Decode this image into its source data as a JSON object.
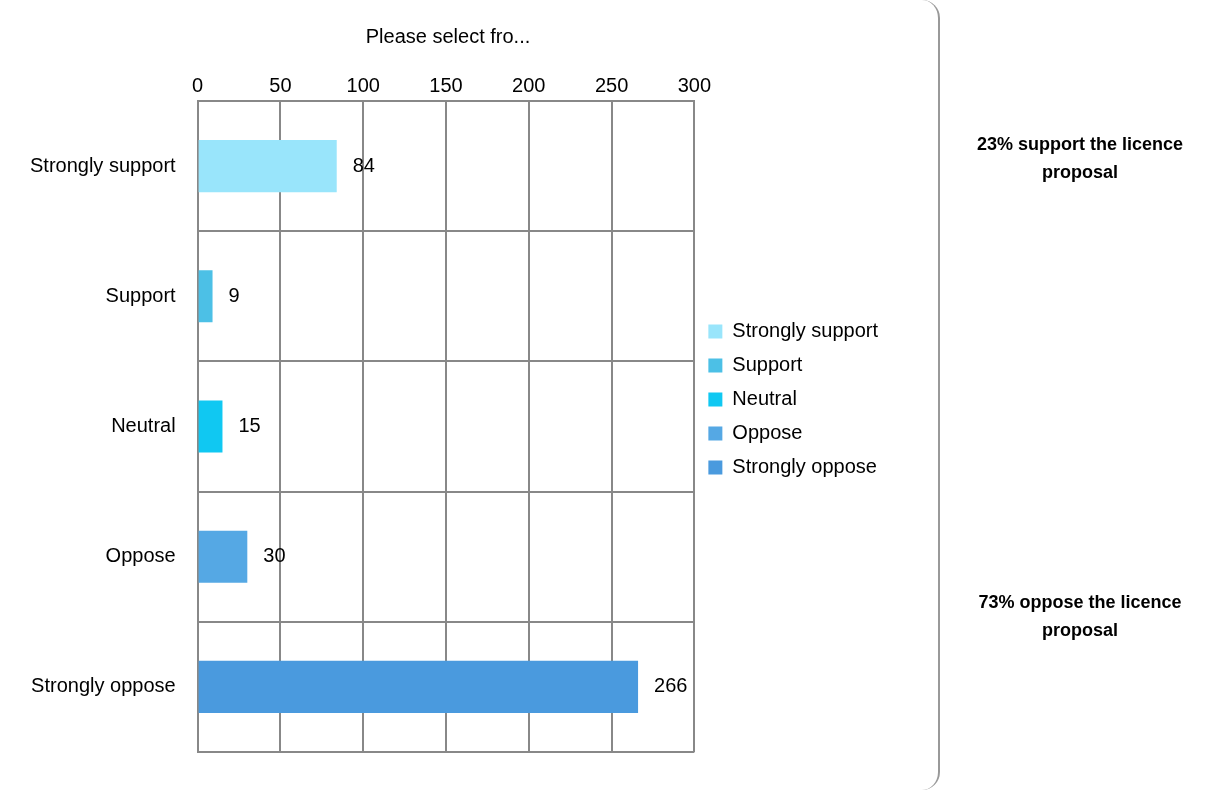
{
  "chart_data": {
    "type": "bar",
    "orientation": "horizontal",
    "stacked": true,
    "title": "Please select fro...",
    "categories": [
      "Strongly support",
      "Support",
      "Neutral",
      "Oppose",
      "Strongly oppose"
    ],
    "series": [
      {
        "name": "Strongly support",
        "color": "#99e5fb",
        "values": [
          84,
          null,
          null,
          null,
          null
        ]
      },
      {
        "name": "Support",
        "color": "#4cc0e6",
        "values": [
          null,
          9,
          null,
          null,
          null
        ]
      },
      {
        "name": "Neutral",
        "color": "#10c8f2",
        "values": [
          null,
          null,
          15,
          null,
          null
        ]
      },
      {
        "name": "Oppose",
        "color": "#55a8e4",
        "values": [
          null,
          null,
          null,
          30,
          null
        ]
      },
      {
        "name": "Strongly oppose",
        "color": "#4a9ade",
        "values": [
          null,
          null,
          null,
          null,
          266
        ]
      }
    ],
    "xlim": [
      0,
      300
    ],
    "xticks": [
      0,
      50,
      100,
      150,
      200,
      250,
      300
    ],
    "grid": true,
    "legend": "right",
    "data_labels": true,
    "annotations": [
      "23% support the licence proposal",
      "73% oppose the licence proposal"
    ]
  }
}
